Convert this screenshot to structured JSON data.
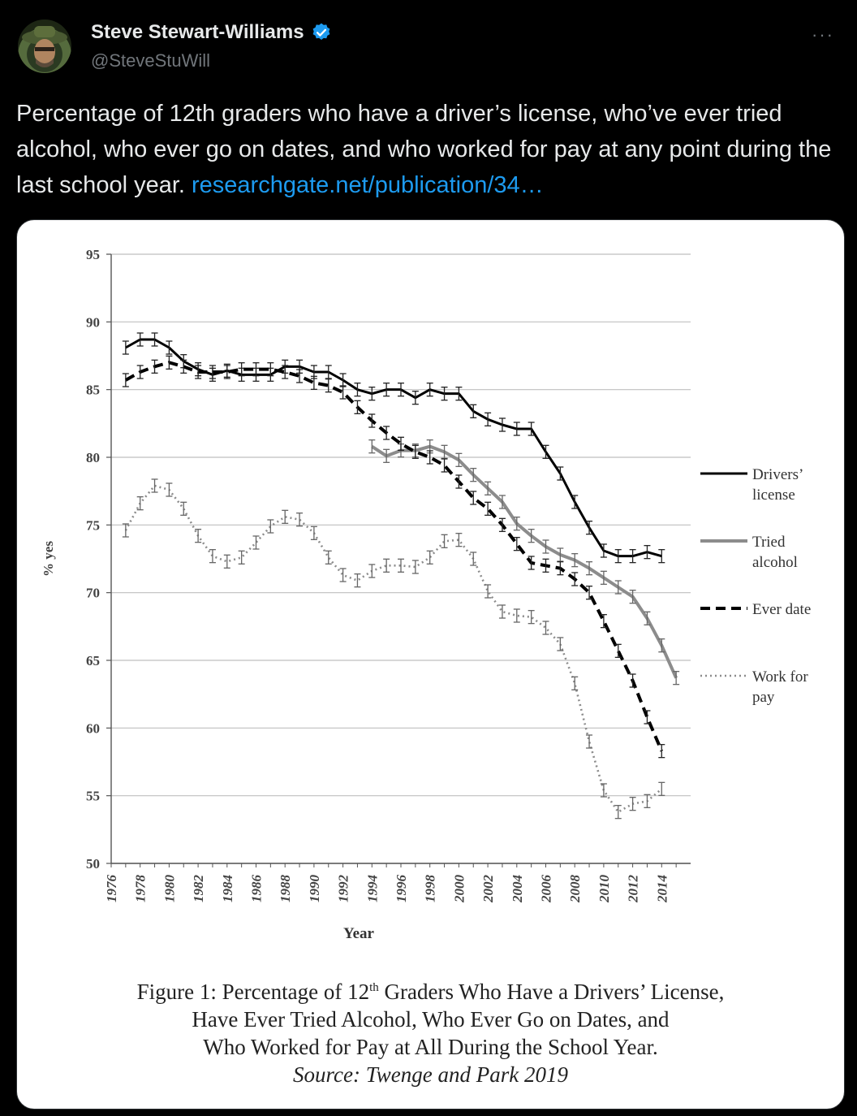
{
  "tweet": {
    "author_name": "Steve Stewart-Williams",
    "handle": "@SteveStuWill",
    "text": "Percentage of 12th graders who have a driver’s license, who’ve ever tried alcohol, who ever go on dates, and who worked for pay at any point during the last school year.",
    "link_text": "researchgate.net/publication/34…",
    "more_label": "···",
    "icons": {
      "avatar": "avatar-icon",
      "verified": "verified-badge-icon",
      "more": "more-icon"
    },
    "colors": {
      "link": "#1d9bf0",
      "verified": "#1d9bf0"
    }
  },
  "caption": {
    "line1_pre": "Figure 1: Percentage of 12",
    "line1_sup": "th",
    "line1_post": " Graders Who Have a Drivers’ License,",
    "line2": "Have Ever Tried Alcohol, Who Ever Go on Dates, and",
    "line3": "Who Worked for Pay at All During the School Year.",
    "source": "Source: Twenge and Park 2019"
  },
  "chart_data": {
    "type": "line",
    "ylabel": "% yes",
    "xlabel": "Year",
    "ylim": [
      50,
      95
    ],
    "xlim": [
      1976,
      2015
    ],
    "yticks": [
      50,
      55,
      60,
      65,
      70,
      75,
      80,
      85,
      90,
      95
    ],
    "xticks": [
      1976,
      1978,
      1980,
      1982,
      1984,
      1986,
      1988,
      1990,
      1992,
      1994,
      1996,
      1998,
      2000,
      2002,
      2004,
      2006,
      2008,
      2010,
      2012,
      2014
    ],
    "grid": true,
    "legend_position": "right",
    "error_bars": true,
    "series": [
      {
        "name": "Drivers’ license",
        "color": "#000000",
        "style": "solid",
        "x": [
          1977,
          1978,
          1979,
          1980,
          1981,
          1982,
          1983,
          1984,
          1985,
          1986,
          1987,
          1988,
          1989,
          1990,
          1991,
          1992,
          1993,
          1994,
          1995,
          1996,
          1997,
          1998,
          1999,
          2000,
          2001,
          2002,
          2003,
          2004,
          2005,
          2006,
          2007,
          2008,
          2009,
          2010,
          2011,
          2012,
          2013,
          2014
        ],
        "values": [
          88.1,
          88.7,
          88.7,
          88.1,
          87.1,
          86.5,
          86.1,
          86.4,
          86.1,
          86.1,
          86.1,
          86.7,
          86.7,
          86.3,
          86.3,
          85.7,
          85.0,
          84.7,
          85.0,
          85.0,
          84.4,
          85.0,
          84.7,
          84.7,
          83.4,
          82.8,
          82.4,
          82.1,
          82.1,
          80.4,
          78.8,
          76.7,
          74.8,
          73.1,
          72.7,
          72.7,
          73.0,
          72.7
        ]
      },
      {
        "name": "Tried alcohol",
        "color": "#8c8c8c",
        "style": "solid",
        "x": [
          1994,
          1995,
          1996,
          1997,
          1998,
          1999,
          2000,
          2001,
          2002,
          2003,
          2004,
          2005,
          2006,
          2007,
          2008,
          2009,
          2010,
          2011,
          2012,
          2013,
          2014,
          2015
        ],
        "values": [
          80.8,
          80.1,
          80.5,
          80.5,
          80.8,
          80.4,
          79.8,
          78.7,
          77.7,
          76.7,
          75.1,
          74.2,
          73.4,
          72.8,
          72.4,
          71.8,
          71.1,
          70.4,
          69.7,
          68.1,
          66.1,
          63.7
        ]
      },
      {
        "name": "Ever date",
        "color": "#000000",
        "style": "dashed",
        "x": [
          1977,
          1978,
          1979,
          1980,
          1981,
          1982,
          1983,
          1984,
          1985,
          1986,
          1987,
          1988,
          1989,
          1990,
          1991,
          1992,
          1993,
          1994,
          1995,
          1996,
          1997,
          1998,
          1999,
          2000,
          2001,
          2002,
          2003,
          2004,
          2005,
          2006,
          2007,
          2008,
          2009,
          2010,
          2011,
          2012,
          2013,
          2014
        ],
        "values": [
          85.7,
          86.3,
          86.7,
          87.0,
          86.7,
          86.3,
          86.3,
          86.3,
          86.5,
          86.5,
          86.5,
          86.3,
          86.0,
          85.5,
          85.3,
          84.8,
          83.7,
          82.7,
          81.8,
          81.0,
          80.4,
          80.0,
          79.4,
          78.2,
          77.0,
          76.2,
          75.0,
          73.6,
          72.2,
          72.0,
          71.8,
          71.0,
          70.0,
          67.9,
          65.7,
          63.5,
          60.8,
          58.3
        ]
      },
      {
        "name": "Work for pay",
        "color": "#8c8c8c",
        "style": "dotted",
        "x": [
          1977,
          1978,
          1979,
          1980,
          1981,
          1982,
          1983,
          1984,
          1985,
          1986,
          1987,
          1988,
          1989,
          1990,
          1991,
          1992,
          1993,
          1994,
          1995,
          1996,
          1997,
          1998,
          1999,
          2000,
          2001,
          2002,
          2003,
          2004,
          2005,
          2006,
          2007,
          2008,
          2009,
          2010,
          2011,
          2012,
          2013,
          2014
        ],
        "values": [
          74.6,
          76.6,
          77.9,
          77.6,
          76.2,
          74.2,
          72.7,
          72.3,
          72.6,
          73.7,
          74.9,
          75.6,
          75.4,
          74.4,
          72.6,
          71.3,
          70.9,
          71.6,
          72.0,
          72.0,
          71.9,
          72.6,
          73.8,
          73.9,
          72.5,
          70.1,
          68.6,
          68.3,
          68.2,
          67.4,
          66.2,
          63.3,
          59.0,
          55.4,
          53.8,
          54.4,
          54.6,
          55.5
        ]
      }
    ],
    "legend": [
      {
        "line1": "Drivers’",
        "line2": "license"
      },
      {
        "line1": "Tried",
        "line2": "alcohol"
      },
      {
        "line1": "Ever date",
        "line2": ""
      },
      {
        "line1": "Work for",
        "line2": "pay"
      }
    ]
  }
}
